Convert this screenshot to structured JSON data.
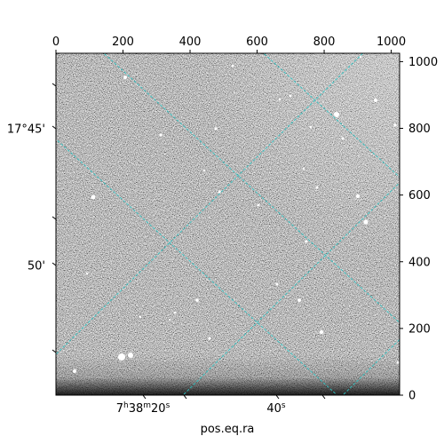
{
  "chart_data": {
    "type": "image",
    "top_axis": {
      "ticks": [
        "0",
        "200",
        "400",
        "600",
        "800",
        "1000"
      ]
    },
    "right_axis": {
      "ticks": [
        "0",
        "200",
        "400",
        "600",
        "800",
        "1000"
      ]
    },
    "left_axis": {
      "ticks": [
        "17°45'",
        "50'"
      ]
    },
    "bottom_axis": {
      "ticks": [
        {
          "main": "7",
          "sup1": "h",
          "mid": "38",
          "sup2": "m",
          "end": "20",
          "sup3": "s"
        },
        {
          "main": "40",
          "sup3": "s"
        }
      ],
      "label": "pos.eq.ra"
    },
    "grid": true,
    "grid_color": "#2ec4c4"
  }
}
